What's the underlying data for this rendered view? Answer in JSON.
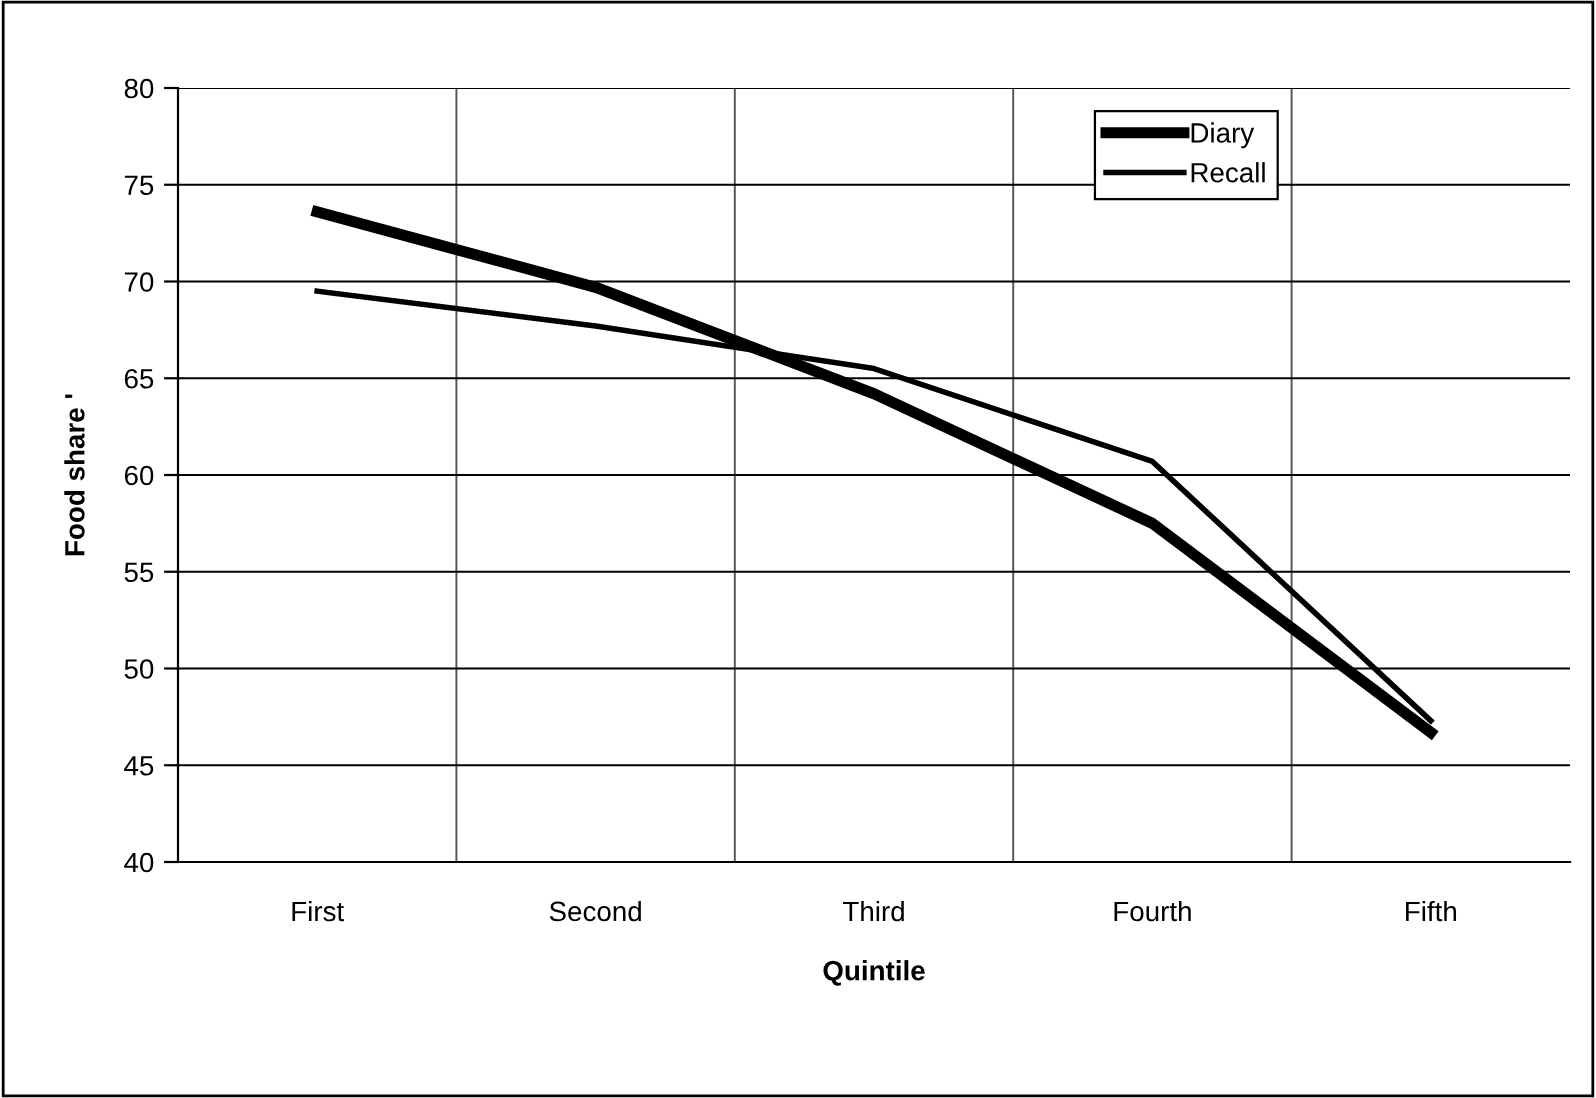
{
  "chart_data": {
    "type": "line",
    "xlabel": "Quintile",
    "ylabel": "Food share '",
    "categories": [
      "First",
      "Second",
      "Third",
      "Fourth",
      "Fifth"
    ],
    "series": [
      {
        "name": "Diary",
        "color": "#000000",
        "values": [
          73.6,
          69.7,
          64.2,
          57.5,
          46.7
        ]
      },
      {
        "name": "Recall",
        "color": "#000000",
        "values": [
          69.5,
          67.7,
          65.5,
          60.7,
          47.3
        ]
      }
    ],
    "ylim": [
      40,
      80
    ],
    "yticks": [
      40,
      45,
      50,
      55,
      60,
      65,
      70,
      75,
      80
    ],
    "grid": true,
    "legend": "top right",
    "marker": "none",
    "line_style": "solid"
  }
}
